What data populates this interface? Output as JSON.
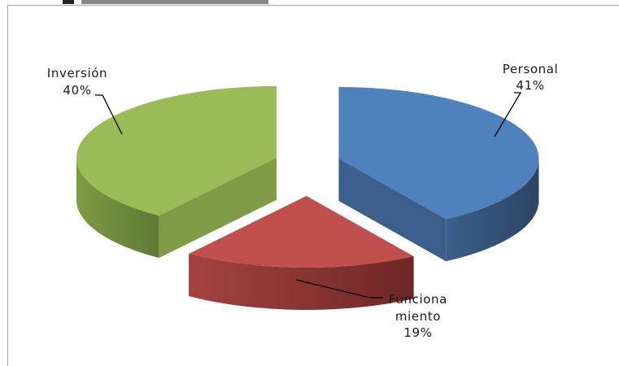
{
  "chart_data": {
    "type": "pie",
    "title": "",
    "three_d": true,
    "exploded": true,
    "slices": [
      {
        "label": "Personal",
        "value": 41,
        "value_label": "41%",
        "label_lines": [
          "Personal",
          "41%"
        ],
        "color": "#4f81bd",
        "side_color": "#2c4464",
        "face_color": "#3b5f8a"
      },
      {
        "label": "Funcionamiento",
        "value": 19,
        "value_label": "19%",
        "label_lines": [
          "Funciona",
          "miento",
          "19%"
        ],
        "color": "#c0504d",
        "side_color": "#6e2725",
        "face_color": "#a34340"
      },
      {
        "label": "Inversión",
        "value": 40,
        "value_label": "40%",
        "label_lines": [
          "Inversión",
          "40%"
        ],
        "color": "#9bbb59",
        "side_color": "#5e7a32",
        "face_color": "#7f9b46"
      }
    ]
  }
}
